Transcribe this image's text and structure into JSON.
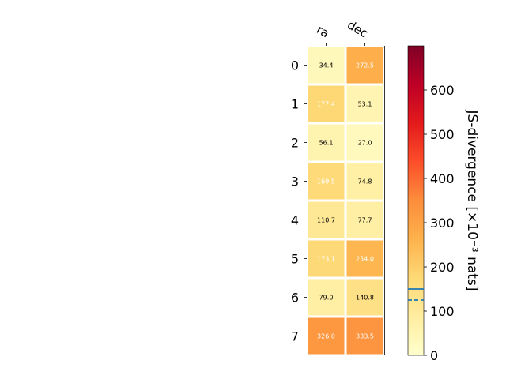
{
  "chart_data": {
    "type": "heatmap",
    "x_categories": [
      "ra",
      "dec"
    ],
    "y_categories": [
      "0",
      "1",
      "2",
      "3",
      "4",
      "5",
      "6",
      "7"
    ],
    "values": [
      [
        34.4,
        272.5
      ],
      [
        177.4,
        53.1
      ],
      [
        56.1,
        27.0
      ],
      [
        169.5,
        74.8
      ],
      [
        110.7,
        77.7
      ],
      [
        173.1,
        254.0
      ],
      [
        79.0,
        140.8
      ],
      [
        326.0,
        333.5
      ]
    ],
    "cell_labels": [
      [
        "34.4",
        "272.5"
      ],
      [
        "177.4",
        "53.1"
      ],
      [
        "56.1",
        "27.0"
      ],
      [
        "169.5",
        "74.8"
      ],
      [
        "110.7",
        "77.7"
      ],
      [
        "173.1",
        "254.0"
      ],
      [
        "79.0",
        "140.8"
      ],
      [
        "326.0",
        "333.5"
      ]
    ],
    "colormap": "YlOrRd",
    "colorbar": {
      "label": "JS-divergence [×10⁻³ nats]",
      "range": [
        0,
        700
      ],
      "ticks": [
        0,
        100,
        200,
        300,
        400,
        500,
        600
      ],
      "tick_labels": [
        "0",
        "100",
        "200",
        "300",
        "400",
        "500",
        "600"
      ],
      "reference_lines": [
        {
          "value": 150,
          "style": "solid",
          "color": "#1f77b4"
        },
        {
          "value": 125,
          "style": "dashed",
          "color": "#1f77b4"
        }
      ]
    },
    "text_color_threshold": 150,
    "grid": false
  }
}
